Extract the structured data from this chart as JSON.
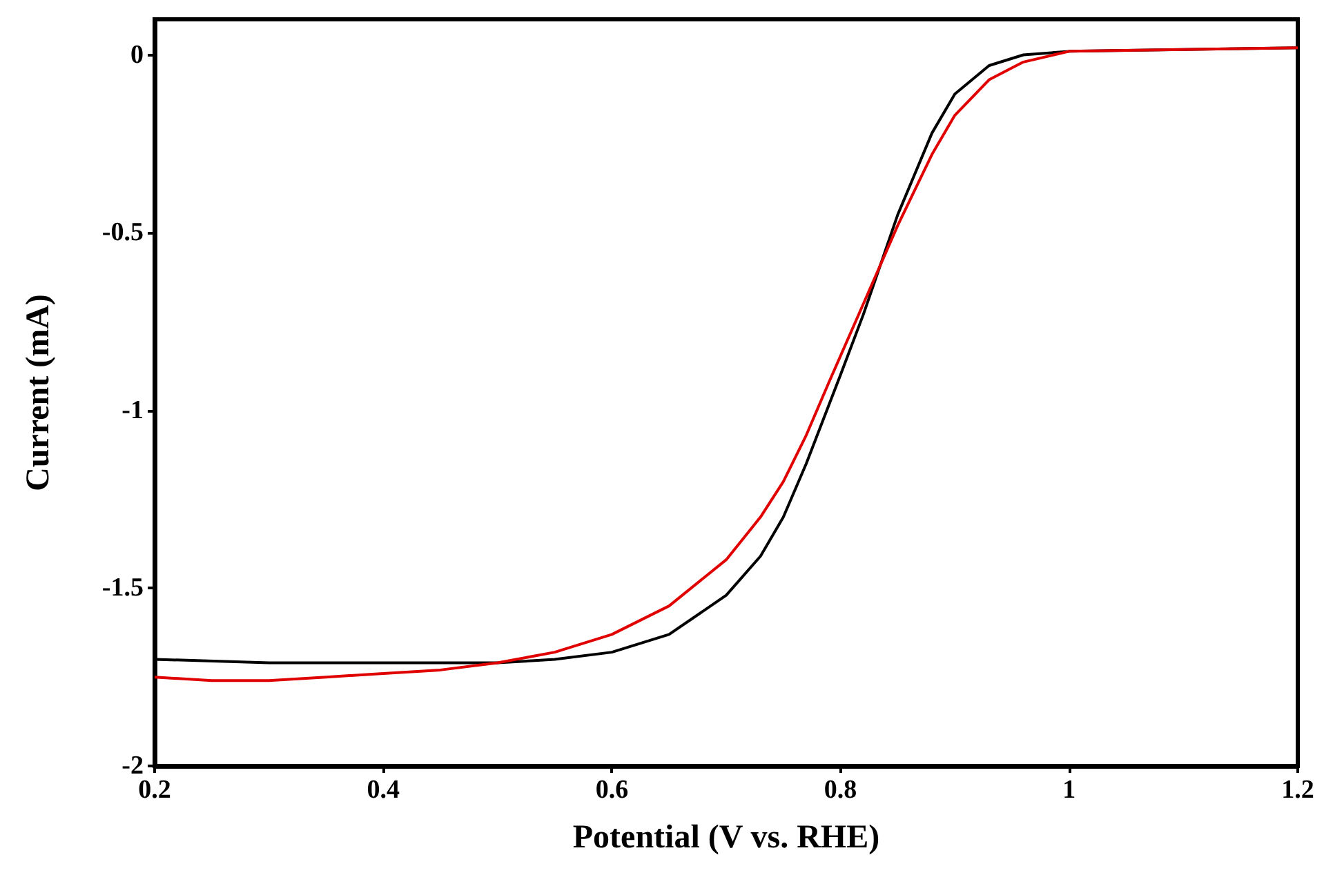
{
  "chart_data": {
    "type": "line",
    "xlabel": "Potential (V vs. RHE)",
    "ylabel": "Current (mA)",
    "xlim": [
      0.2,
      1.2
    ],
    "xticks": [
      0.2,
      0.4,
      0.6,
      0.8,
      1,
      1.2
    ],
    "ylim": [
      -2,
      0.1
    ],
    "yticks": [
      -2,
      -1.5,
      -1,
      -0.5,
      0
    ],
    "grid": false,
    "marker": "none",
    "line_style": "solid",
    "series": [
      {
        "color": "#000000",
        "x": [
          0.2,
          0.3,
          0.4,
          0.5,
          0.55,
          0.6,
          0.65,
          0.7,
          0.73,
          0.75,
          0.77,
          0.8,
          0.82,
          0.85,
          0.88,
          0.9,
          0.93,
          0.96,
          1.0,
          1.2
        ],
        "values": [
          -1.7,
          -1.71,
          -1.71,
          -1.71,
          -1.7,
          -1.68,
          -1.63,
          -1.52,
          -1.41,
          -1.3,
          -1.15,
          -0.9,
          -0.73,
          -0.45,
          -0.22,
          -0.11,
          -0.03,
          0.0,
          0.01,
          0.02
        ]
      },
      {
        "color": "#e00000",
        "x": [
          0.2,
          0.25,
          0.3,
          0.35,
          0.4,
          0.45,
          0.5,
          0.55,
          0.6,
          0.65,
          0.7,
          0.73,
          0.75,
          0.77,
          0.79,
          0.82,
          0.85,
          0.88,
          0.9,
          0.93,
          0.96,
          1.0,
          1.1,
          1.2
        ],
        "values": [
          -1.75,
          -1.76,
          -1.76,
          -1.75,
          -1.74,
          -1.73,
          -1.71,
          -1.68,
          -1.63,
          -1.55,
          -1.42,
          -1.3,
          -1.2,
          -1.07,
          -0.92,
          -0.7,
          -0.48,
          -0.28,
          -0.17,
          -0.07,
          -0.02,
          0.01,
          0.015,
          0.02
        ]
      }
    ]
  }
}
